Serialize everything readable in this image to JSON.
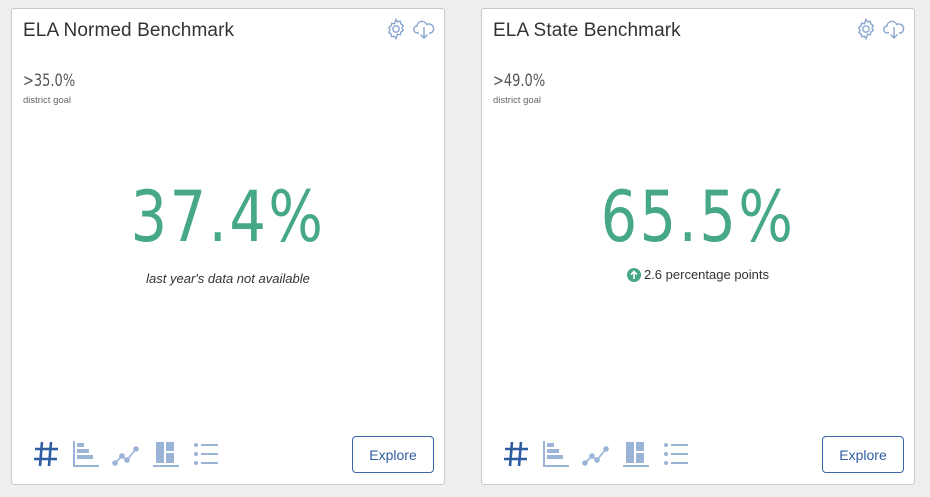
{
  "cards": [
    {
      "title": "ELA Normed Benchmark",
      "goal_value": ">35.0%",
      "goal_label": "district goal",
      "metric": "37.4%",
      "note": "last year's data not available",
      "explore_label": "Explore"
    },
    {
      "title": "ELA State Benchmark",
      "goal_value": ">49.0%",
      "goal_label": "district goal",
      "metric": "65.5%",
      "change": "2.6 percentage points",
      "change_direction": "up",
      "explore_label": "Explore"
    }
  ],
  "icons": {
    "settings": "gear-icon",
    "download": "download-icon",
    "views": [
      "number-view-icon",
      "bar-chart-view-icon",
      "line-chart-view-icon",
      "block-chart-view-icon",
      "list-view-icon"
    ],
    "active_view": "number-view-icon"
  },
  "colors": {
    "metric": "#46a887",
    "active_icon": "#2f5da2",
    "inactive_icon": "#9bb3d6",
    "top_icon": "#8aa5cf",
    "button": "#2f5da2"
  }
}
